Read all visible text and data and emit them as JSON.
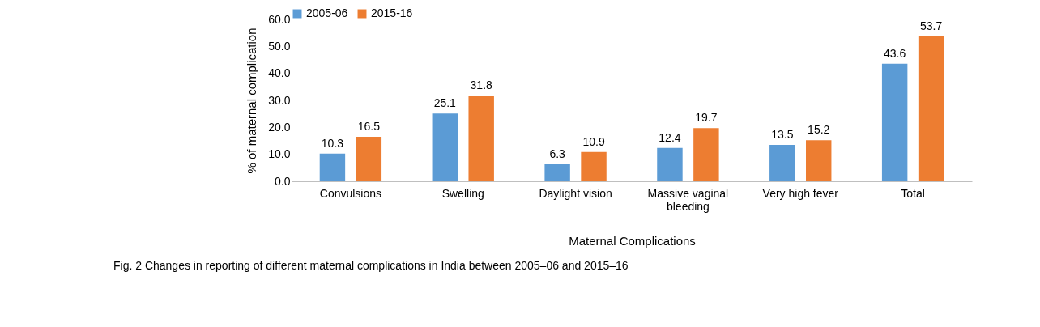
{
  "chart_data": {
    "type": "bar",
    "xlabel": "Maternal Complications",
    "ylabel": "% of maternal complication",
    "categories": [
      "Convulsions",
      "Swelling",
      "Daylight vision",
      "Massive vaginal bleeding",
      "Very high fever",
      "Total"
    ],
    "series": [
      {
        "name": "2005-06",
        "color": "#5b9bd5",
        "values": [
          10.3,
          25.1,
          6.3,
          12.4,
          13.5,
          43.6
        ]
      },
      {
        "name": "2015-16",
        "color": "#ed7d31",
        "values": [
          16.5,
          31.8,
          10.9,
          19.7,
          15.2,
          53.7
        ]
      }
    ],
    "ylim": [
      0,
      60
    ],
    "yticks": [
      {
        "value": 0,
        "label": "0.0"
      },
      {
        "value": 10,
        "label": "10.0"
      },
      {
        "value": 20,
        "label": "20.0"
      },
      {
        "value": 30,
        "label": "30.0"
      },
      {
        "value": 40,
        "label": "40.0"
      },
      {
        "value": 50,
        "label": "50.0"
      },
      {
        "value": 60,
        "label": "60.0"
      }
    ],
    "data_labels": true,
    "legend": "top",
    "grid": false,
    "annotations": [
      "Fig. 2  Changes in reporting of different maternal complications in India between 2005–06 and 2015–16"
    ]
  }
}
